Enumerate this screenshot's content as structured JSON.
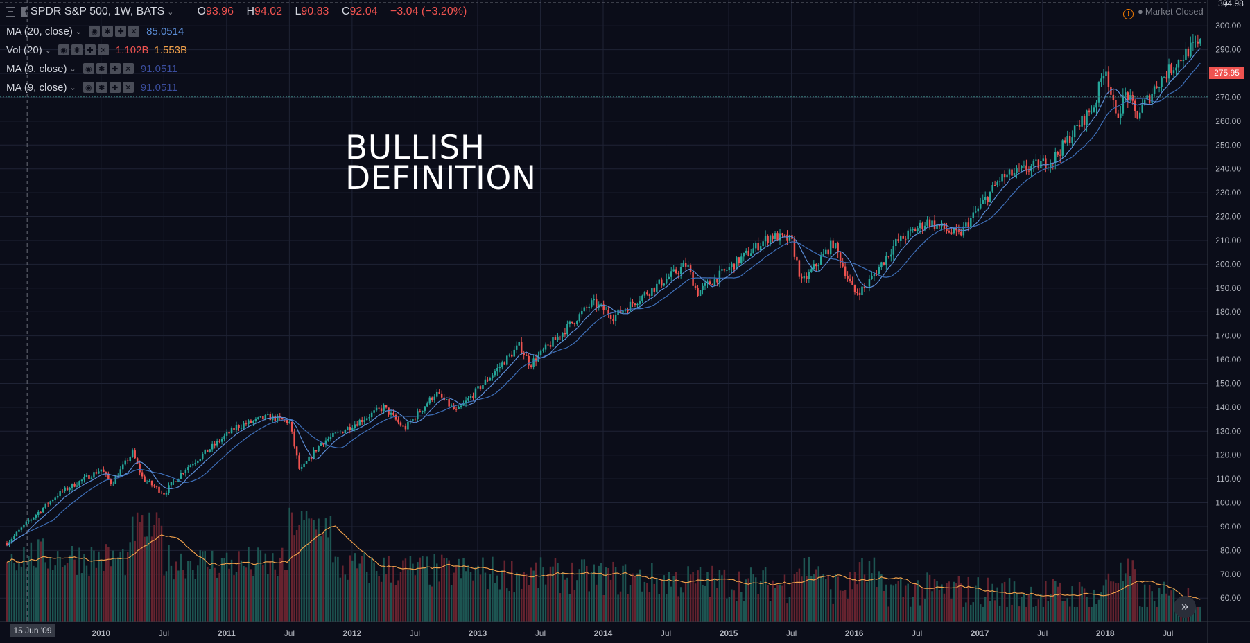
{
  "header": {
    "symbol": "SPDR S&P 500, 1W, BATS",
    "open_label": "O",
    "open": "93.96",
    "high_label": "H",
    "high": "94.02",
    "low_label": "L",
    "low": "90.83",
    "close_label": "C",
    "close": "92.04",
    "change": "−3.04 (−3.20%)"
  },
  "indicators": [
    {
      "label": "MA (20, close)",
      "value": "85.0514"
    },
    {
      "label": "Vol (20)",
      "value": "1.102B",
      "value2": "1.553B"
    },
    {
      "label": "MA (9, close)",
      "value": "91.0511"
    },
    {
      "label": "MA (9, close)",
      "value": "91.0511"
    }
  ],
  "overlay_text": "BULLISH\nDEFINITION",
  "market_status": "Market Closed",
  "price_tag": "275.95",
  "top_price": "304.98",
  "crosshair_date": "15 Jun '09",
  "colors": {
    "background": "#0b0d19",
    "grid": "#1f2335",
    "up": "#26a69a",
    "down": "#ef5350",
    "ma20": "#3e6fb8",
    "ma9": "#5b8dd6",
    "vol_ma": "#f0a04b"
  },
  "icons": [
    "collapse-icon",
    "flag-icon",
    "eye-icon",
    "gear-icon",
    "plus-icon",
    "close-icon",
    "warning-icon",
    "scroll-right-icon"
  ],
  "chart_data": {
    "type": "candlestick",
    "interval": "1W",
    "x_tick_labels": [
      "2010",
      "Jul",
      "2011",
      "Jul",
      "2012",
      "Jul",
      "2013",
      "Jul",
      "2014",
      "Jul",
      "2015",
      "Jul",
      "2016",
      "Jul",
      "2017",
      "Jul",
      "2018",
      "Jul"
    ],
    "y_tick_labels": [
      "300.00",
      "290.00",
      "280.00",
      "270.00",
      "260.00",
      "250.00",
      "240.00",
      "230.00",
      "220.00",
      "210.00",
      "200.00",
      "190.00",
      "180.00",
      "170.00",
      "160.00",
      "150.00",
      "140.00",
      "130.00",
      "120.00",
      "110.00",
      "100.00",
      "90.00",
      "80.00",
      "70.00",
      "60.00"
    ],
    "ylim": [
      56,
      304.98
    ],
    "xlim": [
      "2009-04",
      "2018-10"
    ],
    "close_anchors": [
      {
        "t": "2009-04",
        "v": 83
      },
      {
        "t": "2009-06",
        "v": 92
      },
      {
        "t": "2009-09",
        "v": 104
      },
      {
        "t": "2010-01",
        "v": 114
      },
      {
        "t": "2010-02",
        "v": 108
      },
      {
        "t": "2010-04",
        "v": 121
      },
      {
        "t": "2010-05",
        "v": 110
      },
      {
        "t": "2010-07",
        "v": 104
      },
      {
        "t": "2010-09",
        "v": 114
      },
      {
        "t": "2011-02",
        "v": 132
      },
      {
        "t": "2011-05",
        "v": 136
      },
      {
        "t": "2011-07",
        "v": 134
      },
      {
        "t": "2011-08",
        "v": 113
      },
      {
        "t": "2011-10",
        "v": 125
      },
      {
        "t": "2012-04",
        "v": 140
      },
      {
        "t": "2012-06",
        "v": 131
      },
      {
        "t": "2012-09",
        "v": 146
      },
      {
        "t": "2012-11",
        "v": 138
      },
      {
        "t": "2013-05",
        "v": 166
      },
      {
        "t": "2013-06",
        "v": 158
      },
      {
        "t": "2013-12",
        "v": 184
      },
      {
        "t": "2014-02",
        "v": 178
      },
      {
        "t": "2014-09",
        "v": 200
      },
      {
        "t": "2014-10",
        "v": 188
      },
      {
        "t": "2015-05",
        "v": 212
      },
      {
        "t": "2015-07",
        "v": 210
      },
      {
        "t": "2015-08",
        "v": 192
      },
      {
        "t": "2015-11",
        "v": 209
      },
      {
        "t": "2016-01",
        "v": 188
      },
      {
        "t": "2016-02",
        "v": 190
      },
      {
        "t": "2016-05",
        "v": 209
      },
      {
        "t": "2016-08",
        "v": 218
      },
      {
        "t": "2016-11",
        "v": 212
      },
      {
        "t": "2017-03",
        "v": 236
      },
      {
        "t": "2017-08",
        "v": 244
      },
      {
        "t": "2017-12",
        "v": 267
      },
      {
        "t": "2018-01",
        "v": 284
      },
      {
        "t": "2018-02",
        "v": 261
      },
      {
        "t": "2018-03",
        "v": 272
      },
      {
        "t": "2018-04",
        "v": 262
      },
      {
        "t": "2018-06",
        "v": 276
      },
      {
        "t": "2018-09",
        "v": 290
      },
      {
        "t": "2018-10",
        "v": 292
      }
    ],
    "moving_averages": [
      {
        "name": "MA (20, close)",
        "period": 20,
        "value": 85.0514
      },
      {
        "name": "MA (9, close)",
        "period": 9,
        "value": 91.0511
      }
    ],
    "volume": {
      "name": "Vol (20)",
      "current": "1.102B",
      "average": "1.553B"
    }
  }
}
